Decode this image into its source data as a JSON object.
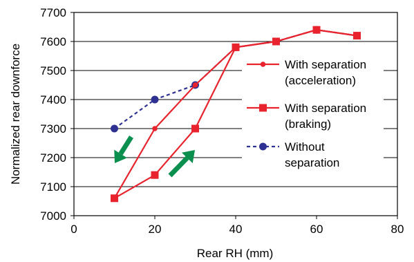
{
  "chart_data": {
    "type": "line",
    "title": "",
    "xlabel": "Rear RH (mm)",
    "ylabel": "Normalized rear downforce",
    "xlim": [
      0,
      80
    ],
    "ylim": [
      7000,
      7700
    ],
    "x_ticks": [
      "0",
      "20",
      "40",
      "60",
      "80"
    ],
    "y_ticks": [
      "7000",
      "7100",
      "7200",
      "7300",
      "7400",
      "7500",
      "7600",
      "7700"
    ],
    "grid": "horizontal",
    "legend_position": "right",
    "series": [
      {
        "name": "With separation (acceleration)",
        "legend_lines": [
          "With separation",
          "(acceleration)"
        ],
        "marker": "circle",
        "line_style": "solid",
        "color": "#e8232d",
        "x": [
          10,
          20,
          30,
          40,
          50,
          60,
          70
        ],
        "y": [
          7060,
          7300,
          7450,
          7580,
          7600,
          7640,
          7620
        ]
      },
      {
        "name": "With separation (braking)",
        "legend_lines": [
          "With separation",
          "(braking)"
        ],
        "marker": "square",
        "line_style": "solid",
        "color": "#e8232d",
        "x": [
          10,
          20,
          30,
          40,
          50,
          60,
          70
        ],
        "y": [
          7060,
          7140,
          7300,
          7580,
          7600,
          7640,
          7620
        ]
      },
      {
        "name": "Without separation",
        "legend_lines": [
          "Without",
          "separation"
        ],
        "marker": "circle",
        "line_style": "dashed",
        "color": "#2e3192",
        "x": [
          10,
          20,
          30,
          40,
          50,
          60,
          70
        ],
        "y": [
          7300,
          7400,
          7450,
          7580,
          7600,
          7640,
          7620
        ]
      }
    ],
    "annotations": [
      {
        "type": "arrow",
        "direction": "down-left",
        "color": "#0a8f4e"
      },
      {
        "type": "arrow",
        "direction": "up-right",
        "color": "#0a8f4e"
      }
    ]
  }
}
